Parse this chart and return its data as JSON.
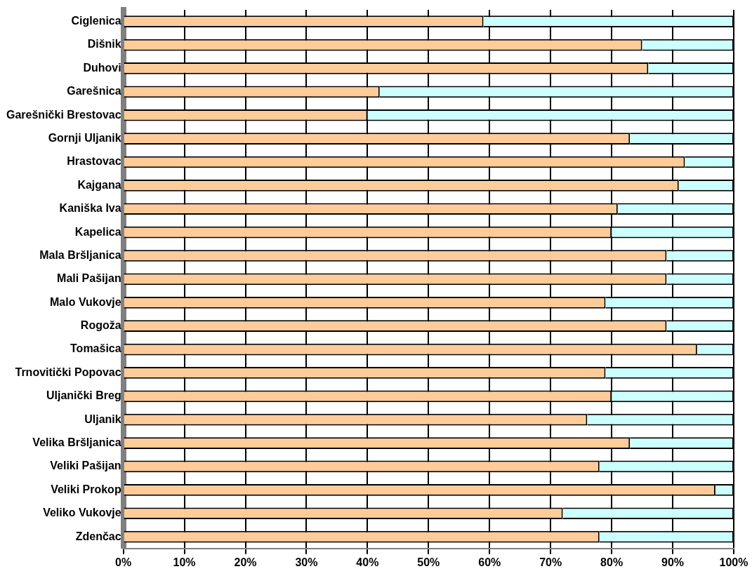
{
  "chart_data": {
    "type": "bar",
    "orientation": "horizontal",
    "stacked": true,
    "categories": [
      "Ciglenica",
      "Dišnik",
      "Duhovi",
      "Garešnica",
      "Garešnički Brestovac",
      "Gornji Uljanik",
      "Hrastovac",
      "Kajgana",
      "Kaniška Iva",
      "Kapelica",
      "Mala Bršljanica",
      "Mali Pašijan",
      "Malo Vukovje",
      "Rogoža",
      "Tomašica",
      "Trnovitički Popovac",
      "Uljanički Breg",
      "Uljanik",
      "Velika Bršljanica",
      "Veliki Pašijan",
      "Veliki Prokop",
      "Veliko Vukovje",
      "Zdenčac"
    ],
    "series": [
      {
        "color": "#ffcc99",
        "values": [
          59,
          85,
          86,
          42,
          40,
          83,
          92,
          91,
          81,
          80,
          89,
          89,
          79,
          89,
          94,
          79,
          80,
          76,
          83,
          78,
          97,
          72,
          78
        ]
      },
      {
        "color": "#ccffff",
        "values": [
          41,
          15,
          14,
          58,
          60,
          17,
          8,
          9,
          19,
          20,
          11,
          11,
          21,
          11,
          6,
          21,
          20,
          24,
          17,
          22,
          3,
          28,
          22
        ]
      }
    ],
    "xlim": [
      0,
      100
    ],
    "xticks": [
      {
        "value": 0,
        "label": "0%"
      },
      {
        "value": 10,
        "label": "10%"
      },
      {
        "value": 20,
        "label": "20%"
      },
      {
        "value": 30,
        "label": "30%"
      },
      {
        "value": 40,
        "label": "40%"
      },
      {
        "value": 50,
        "label": "50%"
      },
      {
        "value": 60,
        "label": "60%"
      },
      {
        "value": 70,
        "label": "70%"
      },
      {
        "value": 80,
        "label": "80%"
      },
      {
        "value": 90,
        "label": "90%"
      },
      {
        "value": 100,
        "label": "100%"
      }
    ],
    "grid": "x",
    "legend": false
  }
}
